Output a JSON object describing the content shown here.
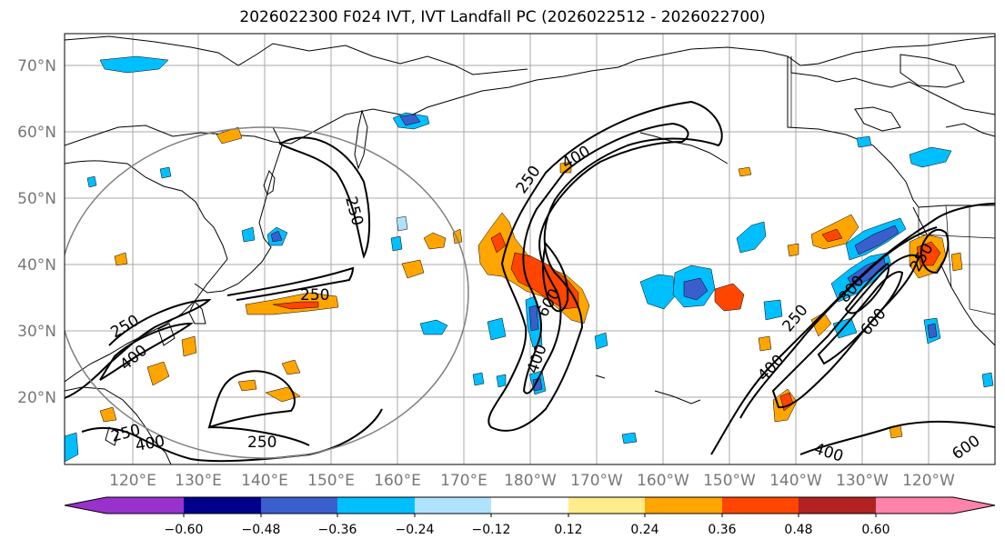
{
  "title": "2026022300 F024 IVT, IVT Landfall PC (2026022512 - 2026022700)",
  "lat_labels": [
    "70°N",
    "60°N",
    "50°N",
    "40°N",
    "30°N",
    "20°N"
  ],
  "lon_labels": [
    "120°E",
    "130°E",
    "140°E",
    "150°E",
    "160°E",
    "170°E",
    "180°W",
    "170°W",
    "160°W",
    "150°W",
    "140°W",
    "130°W",
    "120°W"
  ],
  "colorbar": {
    "ticks": [
      "−0.60",
      "−0.48",
      "−0.36",
      "−0.24",
      "−0.12",
      "0.12",
      "0.24",
      "0.36",
      "0.48",
      "0.60"
    ],
    "colors": [
      "#9932CC",
      "#00008B",
      "#3A5FCD",
      "#00BFFF",
      "#B0E2FF",
      "#FFFFFF",
      "#FFEC8B",
      "#FFA500",
      "#FF4500",
      "#B22222",
      "#FF82AB"
    ]
  },
  "contour_labels": [
    "250",
    "250",
    "250",
    "250",
    "250",
    "250",
    "250",
    "250",
    "400",
    "400",
    "400",
    "400",
    "400",
    "400",
    "600",
    "600",
    "600",
    "800"
  ]
}
